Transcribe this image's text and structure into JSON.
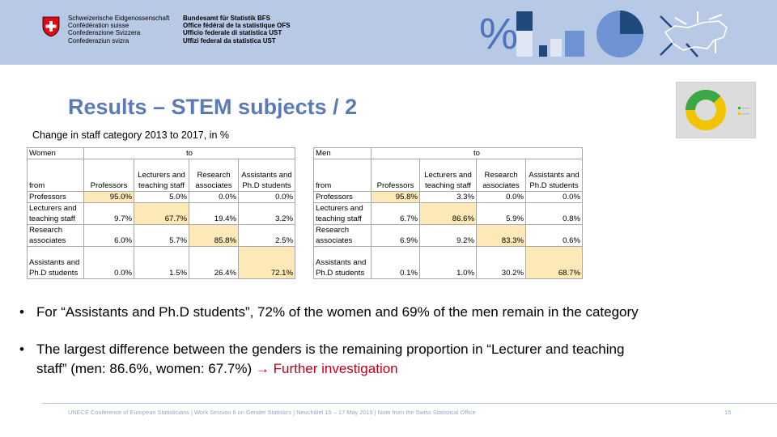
{
  "header": {
    "federation_names": [
      "Schweizerische Eidgenossenschaft",
      "Confédération suisse",
      "Confederazione Svizzera",
      "Confederaziun svizra"
    ],
    "office_names": [
      "Bundesamt für Statistik BFS",
      "Office fédéral de la statistique OFS",
      "Ufficio federale di statistica UST",
      "Uffizi federal da statistica UST"
    ],
    "percent_symbol": "%",
    "colors": {
      "band": "#b8c9e6",
      "accent": "#4f74bd",
      "dark": "#1f4a7e"
    }
  },
  "title": "Results – STEM subjects / 2",
  "subtitle": "Change in staff category 2013 to 2017, in %",
  "tables": [
    {
      "group": "Women",
      "to_label": "to",
      "from_label": "from",
      "columns": [
        "Professors",
        "Lecturers and teaching staff",
        "Research associates",
        "Assistants and Ph.D students"
      ],
      "rows": [
        {
          "label": "Professors",
          "values": [
            "95.0%",
            "5.0%",
            "0.0%",
            "0.0%"
          ]
        },
        {
          "label": "Lecturers and teaching staff",
          "values": [
            "9.7%",
            "67.7%",
            "19.4%",
            "3.2%"
          ]
        },
        {
          "label": "Research associates",
          "values": [
            "6.0%",
            "5.7%",
            "85.8%",
            "2.5%"
          ]
        },
        {
          "label": "Assistants and Ph.D students",
          "values": [
            "0.0%",
            "1.5%",
            "26.4%",
            "72.1%"
          ]
        }
      ]
    },
    {
      "group": "Men",
      "to_label": "to",
      "from_label": "from",
      "columns": [
        "Professors",
        "Lecturers and teaching staff",
        "Research associates",
        "Assistants and Ph.D students"
      ],
      "rows": [
        {
          "label": "Professors",
          "values": [
            "95.8%",
            "3.3%",
            "0.0%",
            "0.0%"
          ]
        },
        {
          "label": "Lecturers and teaching staff",
          "values": [
            "6.7%",
            "86.6%",
            "5.9%",
            "0.8%"
          ]
        },
        {
          "label": "Research associates",
          "values": [
            "6.9%",
            "9.2%",
            "83.3%",
            "0.6%"
          ]
        },
        {
          "label": "Assistants and Ph.D students",
          "values": [
            "0.1%",
            "1.0%",
            "30.2%",
            "68.7%"
          ]
        }
      ]
    }
  ],
  "bullets": [
    {
      "text": "For “Assistants and Ph.D students”, 72% of the women and 69% of the men remain in the category"
    },
    {
      "line1": "The largest difference between the genders is the remaining proportion in “Lecturer and teaching",
      "line2": "staff” (men: 86.6%, women: 67.7%)",
      "arrow": "→",
      "highlight": "Further investigation"
    }
  ],
  "footer": {
    "text": "UNECE Conference of European Statisticians | Work Session 6 on Gender Statistics | Neuchâtel 15 – 17 May 2019 | Note from the Swiss Statistical Office",
    "page": "15"
  }
}
